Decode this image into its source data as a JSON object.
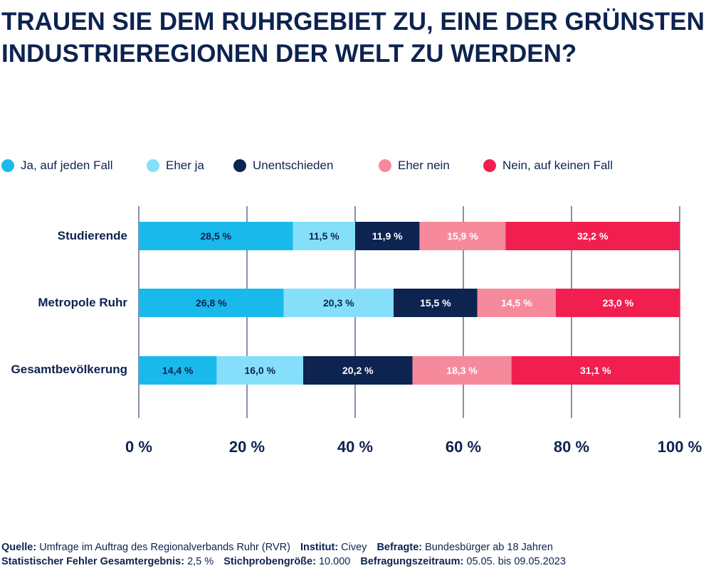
{
  "title_lines": [
    "TRAUEN SIE DEM RUHRGEBIET ZU, EINE DER GRÜNSTEN",
    "INDUSTRIEREGIONEN DER WELT ZU WERDEN?"
  ],
  "chart_data": {
    "type": "bar",
    "orientation": "horizontal",
    "stacked": true,
    "categories": [
      "Studierende",
      "Metropole Ruhr",
      "Gesamtbevölkerung"
    ],
    "series": [
      {
        "name": "Ja, auf jeden Fall",
        "color": "#1ab9ec",
        "values": [
          28.5,
          26.8,
          14.4
        ],
        "labels": [
          "28,5 %",
          "26,8 %",
          "14,4 %"
        ]
      },
      {
        "name": "Eher ja",
        "color": "#85dffb",
        "values": [
          11.5,
          20.3,
          16.0
        ],
        "labels": [
          "11,5 %",
          "20,3 %",
          "16,0 %"
        ]
      },
      {
        "name": "Unentschieden",
        "color": "#0d2350",
        "values": [
          11.9,
          15.5,
          20.2
        ],
        "labels": [
          "11,9 %",
          "15,5 %",
          "20,2 %"
        ]
      },
      {
        "name": "Eher nein",
        "color": "#f7899c",
        "values": [
          15.9,
          14.5,
          18.3
        ],
        "labels": [
          "15,9 %",
          "14,5 %",
          "18,3 %"
        ]
      },
      {
        "name": "Nein, auf keinen Fall",
        "color": "#f01f50",
        "values": [
          32.2,
          23.0,
          31.1
        ],
        "labels": [
          "32,2 %",
          "23,0 %",
          "31,1 %"
        ]
      }
    ],
    "xlim": [
      0,
      100
    ],
    "xticks": [
      "0 %",
      "20 %",
      "40 %",
      "60 %",
      "80 %",
      "100 %"
    ],
    "grid": true,
    "legend_position": "top"
  },
  "footer": {
    "line1": [
      {
        "label": "Quelle:",
        "value": "Umfrage im Auftrag des Regionalverbands Ruhr (RVR)"
      },
      {
        "label": "Institut:",
        "value": "Civey"
      },
      {
        "label": "Befragte:",
        "value": " Bundesbürger ab 18 Jahren"
      }
    ],
    "line2": [
      {
        "label": "Statistischer Fehler Gesamtergebnis:",
        "value": "2,5 %"
      },
      {
        "label": "Stichprobengröße:",
        "value": "10.000"
      },
      {
        "label": "Befragungszeitraum:",
        "value": "05.05. bis 09.05.2023"
      }
    ]
  }
}
